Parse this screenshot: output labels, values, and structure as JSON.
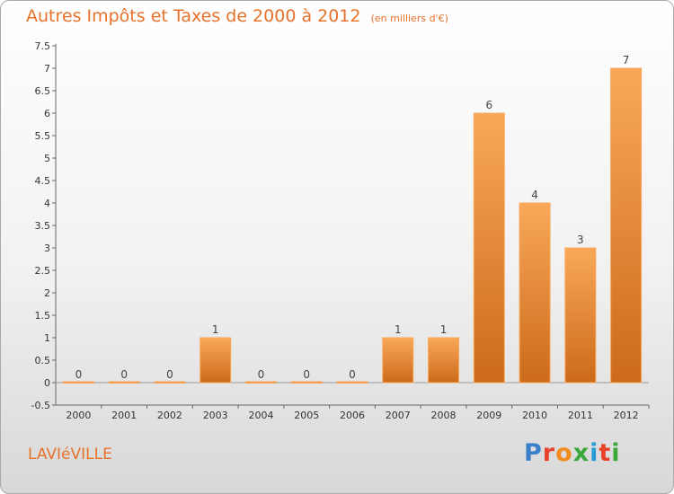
{
  "title": "Autres Impôts et Taxes de 2000 à 2012",
  "subtitle": "(en milliers d'€)",
  "commune": "LAVIéVILLE",
  "logo": {
    "text": "Proxiti",
    "colors": [
      "#3a7fc9",
      "#e8432a",
      "#f28c1e",
      "#3aa83a",
      "#2a9ad6",
      "#e8432a",
      "#3aa83a"
    ]
  },
  "colors": {
    "accent": "#e8712a",
    "bar_light": "#f9a85a",
    "bar_dark": "#cc6a1a"
  },
  "chart_data": {
    "type": "bar",
    "categories": [
      "2000",
      "2001",
      "2002",
      "2003",
      "2004",
      "2005",
      "2006",
      "2007",
      "2008",
      "2009",
      "2010",
      "2011",
      "2012"
    ],
    "values": [
      0,
      0,
      0,
      1,
      0,
      0,
      0,
      1,
      1,
      6,
      4,
      3,
      7
    ],
    "data_labels": [
      "0",
      "0",
      "0",
      "1",
      "0",
      "0",
      "0",
      "1",
      "1",
      "6",
      "4",
      "3",
      "7"
    ],
    "y_ticks": [
      "-0.5",
      "0",
      "0.5",
      "1",
      "1.5",
      "2",
      "2.5",
      "3",
      "3.5",
      "4",
      "4.5",
      "5",
      "5.5",
      "6",
      "6.5",
      "7",
      "7.5"
    ],
    "ylim": [
      -0.5,
      7.5
    ],
    "xlabel": "",
    "ylabel": "",
    "grid": false,
    "legend": "none"
  }
}
